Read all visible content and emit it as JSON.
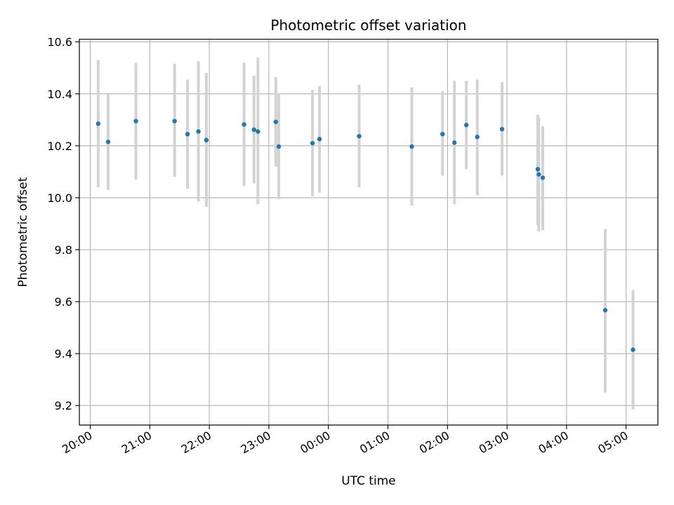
{
  "chart_data": {
    "type": "scatter",
    "title": "Photometric offset variation",
    "xlabel": "UTC time",
    "ylabel": "Photometric offset",
    "xlim": [
      "2000-01-01T19:49",
      "2000-01-02T05:32"
    ],
    "ylim": [
      9.125,
      10.61
    ],
    "grid": true,
    "x_ticks": [
      {
        "t": "2000-01-01T20:00",
        "label": "20:00"
      },
      {
        "t": "2000-01-01T21:00",
        "label": "21:00"
      },
      {
        "t": "2000-01-01T22:00",
        "label": "22:00"
      },
      {
        "t": "2000-01-01T23:00",
        "label": "23:00"
      },
      {
        "t": "2000-01-02T00:00",
        "label": "00:00"
      },
      {
        "t": "2000-01-02T01:00",
        "label": "01:00"
      },
      {
        "t": "2000-01-02T02:00",
        "label": "02:00"
      },
      {
        "t": "2000-01-02T03:00",
        "label": "03:00"
      },
      {
        "t": "2000-01-02T04:00",
        "label": "04:00"
      },
      {
        "t": "2000-01-02T05:00",
        "label": "05:00"
      }
    ],
    "y_ticks": [
      {
        "v": 9.2,
        "label": "9.2"
      },
      {
        "v": 9.4,
        "label": "9.4"
      },
      {
        "v": 9.6,
        "label": "9.6"
      },
      {
        "v": 9.8,
        "label": "9.8"
      },
      {
        "v": 10.0,
        "label": "10.0"
      },
      {
        "v": 10.2,
        "label": "10.2"
      },
      {
        "v": 10.4,
        "label": "10.4"
      },
      {
        "v": 10.6,
        "label": "10.6"
      }
    ],
    "marker_color": "#1f77b4",
    "errorbar_color": "#d3d3d3",
    "points": [
      {
        "x": "2000-01-01T20:08",
        "y": 10.285,
        "ylow": 10.04,
        "yhigh": 10.53
      },
      {
        "x": "2000-01-01T20:18",
        "y": 10.215,
        "ylow": 10.03,
        "yhigh": 10.4
      },
      {
        "x": "2000-01-01T20:46",
        "y": 10.295,
        "ylow": 10.07,
        "yhigh": 10.52
      },
      {
        "x": "2000-01-01T21:25",
        "y": 10.295,
        "ylow": 10.08,
        "yhigh": 10.515
      },
      {
        "x": "2000-01-01T21:38",
        "y": 10.245,
        "ylow": 10.035,
        "yhigh": 10.455
      },
      {
        "x": "2000-01-01T21:49",
        "y": 10.255,
        "ylow": 9.985,
        "yhigh": 10.525
      },
      {
        "x": "2000-01-01T21:57",
        "y": 10.222,
        "ylow": 9.965,
        "yhigh": 10.48
      },
      {
        "x": "2000-01-01T22:35",
        "y": 10.282,
        "ylow": 10.045,
        "yhigh": 10.52
      },
      {
        "x": "2000-01-01T22:45",
        "y": 10.262,
        "ylow": 10.055,
        "yhigh": 10.47
      },
      {
        "x": "2000-01-01T22:49",
        "y": 10.255,
        "ylow": 9.975,
        "yhigh": 10.54
      },
      {
        "x": "2000-01-01T23:07",
        "y": 10.292,
        "ylow": 10.12,
        "yhigh": 10.465
      },
      {
        "x": "2000-01-01T23:10",
        "y": 10.197,
        "ylow": 9.995,
        "yhigh": 10.4
      },
      {
        "x": "2000-01-01T23:44",
        "y": 10.21,
        "ylow": 10.005,
        "yhigh": 10.415
      },
      {
        "x": "2000-01-01T23:51",
        "y": 10.226,
        "ylow": 10.02,
        "yhigh": 10.43
      },
      {
        "x": "2000-01-02T00:31",
        "y": 10.237,
        "ylow": 10.04,
        "yhigh": 10.435
      },
      {
        "x": "2000-01-02T01:24",
        "y": 10.197,
        "ylow": 9.97,
        "yhigh": 10.425
      },
      {
        "x": "2000-01-02T01:55",
        "y": 10.245,
        "ylow": 10.085,
        "yhigh": 10.41
      },
      {
        "x": "2000-01-02T02:07",
        "y": 10.212,
        "ylow": 9.975,
        "yhigh": 10.45
      },
      {
        "x": "2000-01-02T02:19",
        "y": 10.28,
        "ylow": 10.11,
        "yhigh": 10.45
      },
      {
        "x": "2000-01-02T02:30",
        "y": 10.234,
        "ylow": 10.01,
        "yhigh": 10.455
      },
      {
        "x": "2000-01-02T02:55",
        "y": 10.264,
        "ylow": 10.085,
        "yhigh": 10.445
      },
      {
        "x": "2000-01-02T03:31",
        "y": 10.11,
        "ylow": 9.895,
        "yhigh": 10.32
      },
      {
        "x": "2000-01-02T03:32",
        "y": 10.09,
        "ylow": 9.87,
        "yhigh": 10.31
      },
      {
        "x": "2000-01-02T03:36",
        "y": 10.077,
        "ylow": 9.875,
        "yhigh": 10.275
      },
      {
        "x": "2000-01-02T04:39",
        "y": 9.567,
        "ylow": 9.25,
        "yhigh": 9.88
      },
      {
        "x": "2000-01-02T05:07",
        "y": 9.415,
        "ylow": 9.185,
        "yhigh": 9.645
      }
    ]
  }
}
